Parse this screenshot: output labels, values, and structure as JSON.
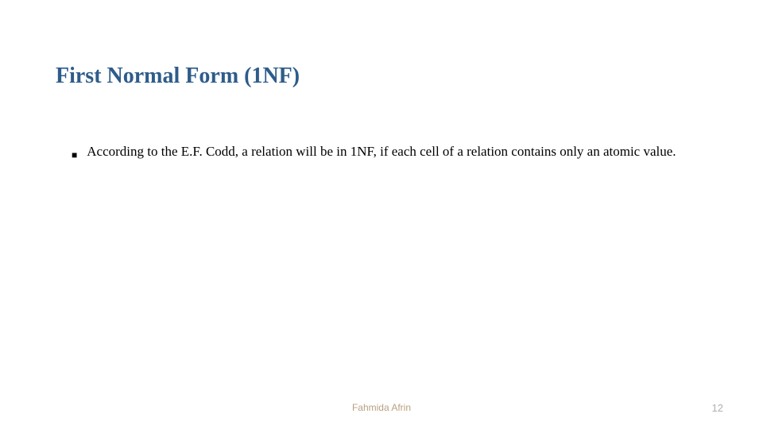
{
  "slide": {
    "title": "First Normal Form (1NF)",
    "title_color": "#2e5c8a",
    "title_fontsize": 28,
    "background_color": "#ffffff",
    "bullets": [
      {
        "text": "According to the E.F. Codd, a relation will be in 1NF, if each cell of a relation contains only an atomic value."
      }
    ],
    "body_fontsize": 17,
    "body_color": "#000000",
    "footer": {
      "author": "Fahmida Afrin",
      "author_color": "#b8a080",
      "page_number": "12",
      "page_color": "#b0b0b0"
    }
  }
}
